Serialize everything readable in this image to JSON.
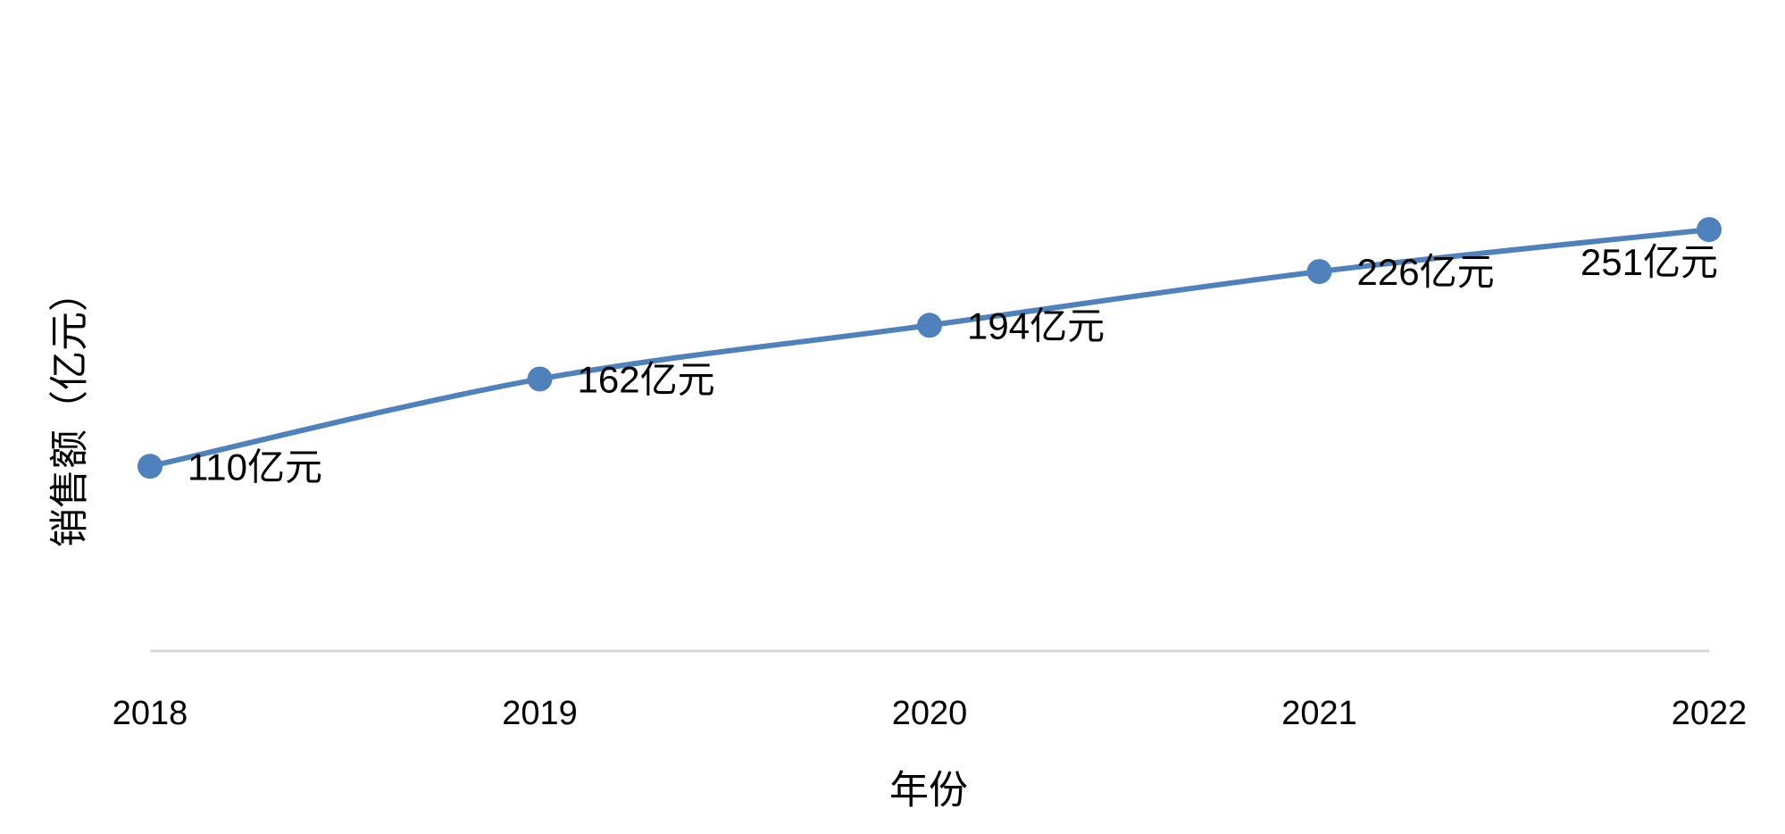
{
  "chart_data": {
    "type": "line",
    "x_label": "年份",
    "y_label": "销售额（亿元）",
    "categories": [
      "2018",
      "2019",
      "2020",
      "2021",
      "2022"
    ],
    "series": [
      {
        "color": "#4f81bd",
        "values": [
          110,
          162,
          194,
          226,
          251
        ],
        "value_labels": [
          "110亿元",
          "162亿元",
          "194亿元",
          "226亿元",
          "251亿元"
        ]
      }
    ],
    "ylim": [
      0,
      300
    ]
  }
}
